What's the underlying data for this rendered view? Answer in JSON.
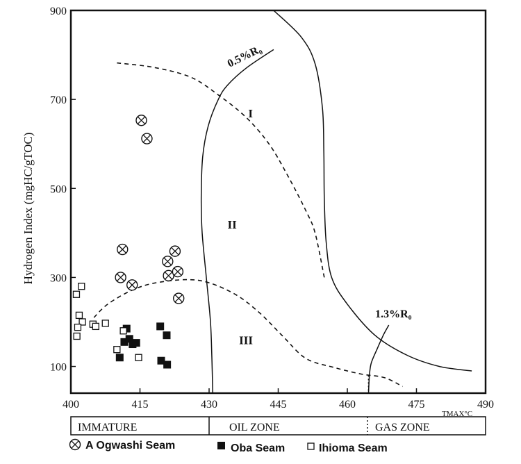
{
  "chart_data": {
    "type": "scatter",
    "xlabel": "TMAX°C",
    "ylabel": "Hydrogen Index (mgHC/gTOC)",
    "xlim": [
      400,
      490
    ],
    "ylim": [
      40,
      900
    ],
    "x_ticks": [
      "400",
      "415",
      "430",
      "445",
      "460",
      "475",
      "490"
    ],
    "y_ticks": [
      "900",
      "700",
      "500",
      "300",
      "100"
    ],
    "series": [
      {
        "name": "A Ogwashi Seam",
        "marker": "circle-x",
        "points": [
          [
            415.3,
            653
          ],
          [
            416.5,
            612
          ],
          [
            411.2,
            363
          ],
          [
            410.8,
            300
          ],
          [
            413.3,
            283
          ],
          [
            421.0,
            336
          ],
          [
            422.6,
            359
          ],
          [
            421.2,
            304
          ],
          [
            423.2,
            313
          ],
          [
            423.4,
            253
          ]
        ]
      },
      {
        "name": "Oba Seam",
        "marker": "filled-square",
        "points": [
          [
            410.6,
            120
          ],
          [
            411.6,
            155
          ],
          [
            412.1,
            185
          ],
          [
            412.7,
            162
          ],
          [
            413.4,
            150
          ],
          [
            414.2,
            153
          ],
          [
            419.4,
            190
          ],
          [
            420.8,
            170
          ],
          [
            419.6,
            113
          ],
          [
            420.9,
            104
          ]
        ]
      },
      {
        "name": "Ihioma Seam",
        "marker": "open-square",
        "points": [
          [
            401.2,
            262
          ],
          [
            402.3,
            280
          ],
          [
            401.8,
            215
          ],
          [
            402.5,
            200
          ],
          [
            401.5,
            188
          ],
          [
            401.3,
            168
          ],
          [
            404.8,
            195
          ],
          [
            405.4,
            190
          ],
          [
            407.5,
            197
          ],
          [
            410.0,
            138
          ],
          [
            411.4,
            180
          ],
          [
            414.7,
            120
          ]
        ]
      }
    ],
    "boundaries": [
      {
        "style": "solid",
        "points": [
          [
            444,
            812
          ],
          [
            438,
            770
          ],
          [
            434,
            732
          ],
          [
            432,
            700
          ],
          [
            429.8,
            640
          ],
          [
            428.6,
            570
          ],
          [
            428.3,
            480
          ],
          [
            428.5,
            400
          ],
          [
            429.4,
            300
          ],
          [
            430.3,
            200
          ],
          [
            430.6,
            120
          ],
          [
            430.8,
            40
          ]
        ]
      },
      {
        "style": "solid",
        "points": [
          [
            444,
            900
          ],
          [
            450,
            840
          ],
          [
            453,
            780
          ],
          [
            454.6,
            680
          ],
          [
            454.9,
            580
          ],
          [
            455,
            480
          ],
          [
            455.4,
            380
          ],
          [
            456.6,
            300
          ],
          [
            460,
            240
          ],
          [
            466,
            170
          ],
          [
            473,
            125
          ],
          [
            480,
            100
          ],
          [
            487,
            90
          ]
        ]
      },
      {
        "style": "solid",
        "points": [
          [
            469,
            193
          ],
          [
            467.8,
            170
          ],
          [
            466.5,
            140
          ],
          [
            465.2,
            108
          ],
          [
            464.8,
            80
          ],
          [
            464.6,
            40
          ]
        ]
      },
      {
        "style": "dashed",
        "points": [
          [
            410,
            782
          ],
          [
            418,
            772
          ],
          [
            426,
            750
          ],
          [
            432,
            710
          ],
          [
            438,
            660
          ],
          [
            443,
            600
          ],
          [
            447,
            530
          ],
          [
            451,
            450
          ],
          [
            453,
            400
          ],
          [
            455,
            300
          ]
        ]
      },
      {
        "style": "dashed",
        "points": [
          [
            405,
            210
          ],
          [
            408,
            240
          ],
          [
            413,
            270
          ],
          [
            418,
            287
          ],
          [
            425,
            295
          ],
          [
            430,
            288
          ],
          [
            436,
            260
          ],
          [
            441,
            220
          ],
          [
            446,
            168
          ],
          [
            451,
            118
          ],
          [
            457,
            98
          ],
          [
            463,
            83
          ],
          [
            468,
            75
          ],
          [
            472,
            55
          ]
        ]
      },
      {
        "style": "dotted",
        "points": [
          [
            464.6,
            80
          ],
          [
            464.6,
            40
          ]
        ]
      }
    ],
    "annotations": [
      {
        "text": "0.5%R₀",
        "x": 438,
        "y": 790,
        "rotate": -26
      },
      {
        "text": "I",
        "x": 439,
        "y": 660
      },
      {
        "text": "II",
        "x": 435,
        "y": 410
      },
      {
        "text": "III",
        "x": 438,
        "y": 150
      },
      {
        "text": "1.3%R₀",
        "x": 470,
        "y": 210
      }
    ],
    "zones": [
      "IMMATURE",
      "OIL ZONE",
      "GAS ZONE"
    ],
    "grid": false,
    "legend_position": "bottom"
  }
}
